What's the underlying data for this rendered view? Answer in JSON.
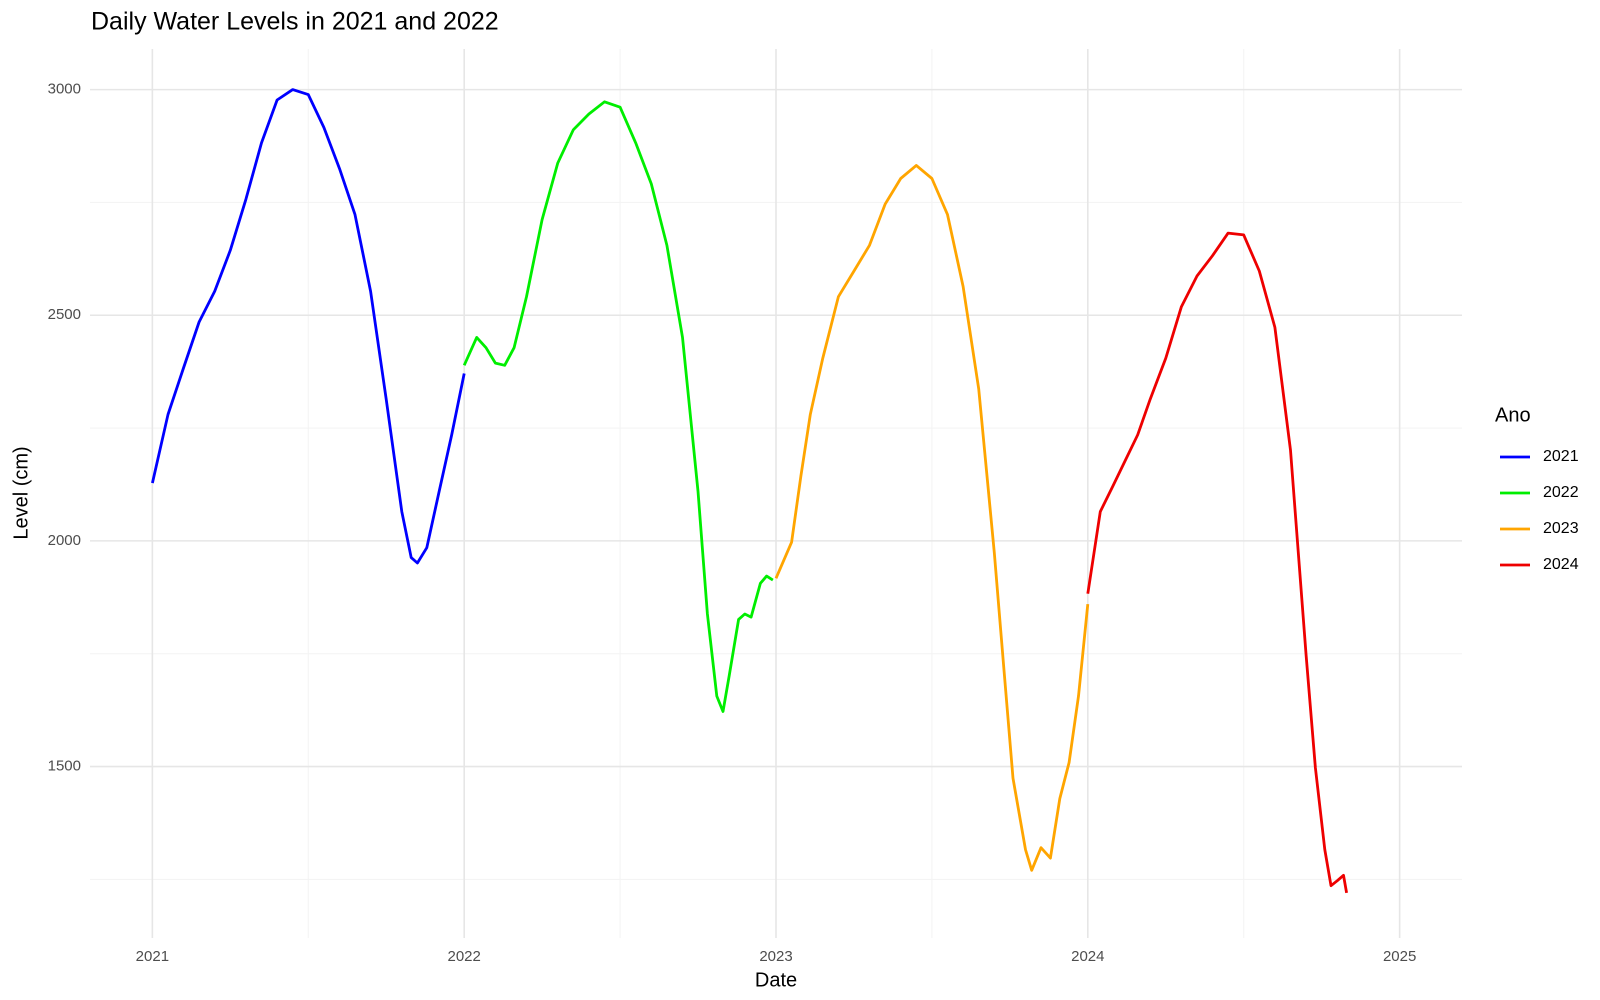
{
  "chart_data": {
    "type": "line",
    "title": "Daily Water Levels in 2021 and 2022",
    "xlabel": "Date",
    "ylabel": "Level (cm)",
    "legend_title": "Ano",
    "legend": "right",
    "grid": true,
    "xlim": [
      2020.8,
      2025.2
    ],
    "xticks": [
      2021,
      2022,
      2023,
      2024,
      2025
    ],
    "ylim": [
      1120,
      3090
    ],
    "yticks": [
      1500,
      2000,
      2500,
      3000
    ],
    "series": [
      {
        "name": "2021",
        "color": "#0000ff",
        "x": [
          2021.0,
          2021.05,
          2021.1,
          2021.15,
          2021.2,
          2021.25,
          2021.3,
          2021.35,
          2021.4,
          2021.45,
          2021.5,
          2021.55,
          2021.6,
          2021.65,
          2021.7,
          2021.75,
          2021.8,
          2021.83,
          2021.85,
          2021.88,
          2021.92,
          2021.96,
          2022.0
        ],
        "values": [
          2128,
          2280,
          2383,
          2485,
          2553,
          2644,
          2757,
          2882,
          2977,
          3000,
          2989,
          2916,
          2825,
          2723,
          2553,
          2314,
          2065,
          1963,
          1951,
          1985,
          2110,
          2235,
          2371
        ]
      },
      {
        "name": "2022",
        "color": "#00ee00",
        "x": [
          2022.0,
          2022.04,
          2022.07,
          2022.1,
          2022.13,
          2022.16,
          2022.2,
          2022.25,
          2022.3,
          2022.35,
          2022.4,
          2022.45,
          2022.5,
          2022.55,
          2022.6,
          2022.65,
          2022.7,
          2022.75,
          2022.78,
          2022.81,
          2022.83,
          2022.85,
          2022.88,
          2022.9,
          2022.92,
          2022.95,
          2022.97,
          2022.99
        ],
        "values": [
          2389,
          2451,
          2428,
          2394,
          2389,
          2428,
          2541,
          2712,
          2837,
          2911,
          2946,
          2973,
          2961,
          2882,
          2791,
          2655,
          2451,
          2110,
          1838,
          1656,
          1622,
          1701,
          1826,
          1838,
          1831,
          1906,
          1922,
          1913
        ]
      },
      {
        "name": "2023",
        "color": "#ffa500",
        "x": [
          2023.0,
          2023.05,
          2023.08,
          2023.11,
          2023.15,
          2023.2,
          2023.25,
          2023.3,
          2023.35,
          2023.4,
          2023.45,
          2023.5,
          2023.55,
          2023.6,
          2023.65,
          2023.7,
          2023.73,
          2023.76,
          2023.8,
          2023.82,
          2023.85,
          2023.88,
          2023.91,
          2023.94,
          2023.97,
          2024.0
        ],
        "values": [
          1917,
          1997,
          2144,
          2280,
          2405,
          2541,
          2598,
          2655,
          2746,
          2803,
          2832,
          2803,
          2723,
          2564,
          2337,
          1974,
          1724,
          1474,
          1316,
          1270,
          1320,
          1297,
          1429,
          1509,
          1656,
          1860
        ]
      },
      {
        "name": "2024",
        "color": "#ee0000",
        "x": [
          2024.0,
          2024.04,
          2024.08,
          2024.12,
          2024.16,
          2024.2,
          2024.25,
          2024.3,
          2024.35,
          2024.4,
          2024.45,
          2024.5,
          2024.55,
          2024.6,
          2024.65,
          2024.7,
          2024.73,
          2024.76,
          2024.78,
          2024.8,
          2024.82,
          2024.83
        ],
        "values": [
          1883,
          2065,
          2121,
          2178,
          2235,
          2314,
          2405,
          2519,
          2587,
          2632,
          2682,
          2678,
          2598,
          2473,
          2201,
          1747,
          1497,
          1316,
          1236,
          1247,
          1259,
          1220
        ]
      }
    ]
  }
}
